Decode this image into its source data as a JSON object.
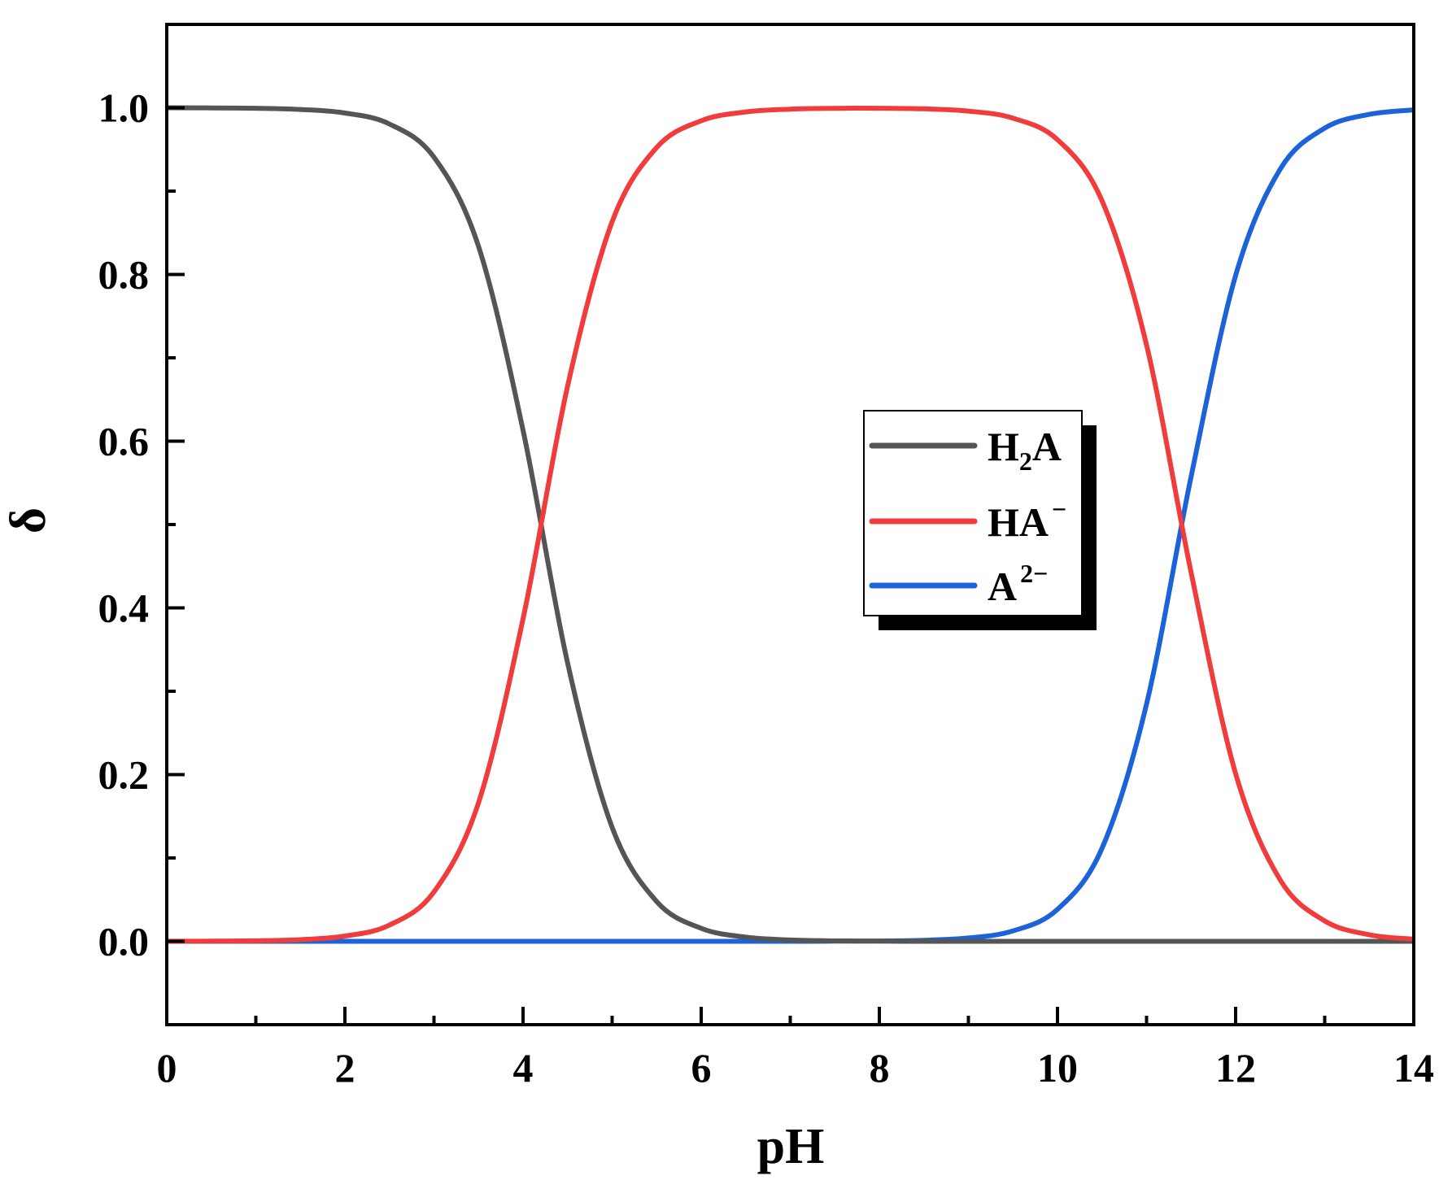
{
  "chart_data": {
    "type": "line",
    "title": "",
    "xlabel": "pH",
    "ylabel": "δ",
    "xlim": [
      0,
      14
    ],
    "ylim": [
      -0.1,
      1.1
    ],
    "x_ticks": [
      0,
      2,
      4,
      6,
      8,
      10,
      12,
      14
    ],
    "x_tick_labels": [
      "0",
      "2",
      "4",
      "6",
      "8",
      "10",
      "12",
      "14"
    ],
    "x_minor_ticks": [
      1,
      3,
      5,
      7,
      9,
      11,
      13
    ],
    "y_ticks": [
      0.0,
      0.2,
      0.4,
      0.6,
      0.8,
      1.0
    ],
    "y_tick_labels": [
      "0.0",
      "0.2",
      "0.4",
      "0.6",
      "0.8",
      "1.0"
    ],
    "y_minor_ticks": [
      0.1,
      0.3,
      0.5,
      0.7,
      0.9
    ],
    "grid": false,
    "legend_position": "center-right",
    "pKa1": 4.2,
    "pKa2": 11.6,
    "x": [
      0,
      0.5,
      1,
      1.5,
      2,
      2.5,
      3,
      3.5,
      4,
      4.5,
      5,
      5.5,
      6,
      6.5,
      7,
      7.5,
      8,
      8.5,
      9,
      9.5,
      10,
      10.5,
      11,
      11.5,
      12,
      12.5,
      13,
      13.5,
      14
    ],
    "series": [
      {
        "name": "H2A",
        "legend_main": "H",
        "legend_sub": "2",
        "legend_tail": "A",
        "color": "#555555",
        "values": [
          1.0,
          0.9998,
          0.9994,
          0.998,
          0.9937,
          0.9805,
          0.9407,
          0.8337,
          0.6131,
          0.3339,
          0.1368,
          0.0477,
          0.0156,
          0.005,
          0.0016,
          0.0005,
          0.0002,
          0.0,
          0.0,
          0.0,
          0.0,
          0.0,
          0.0,
          0.0,
          0.0,
          0.0,
          0.0,
          0.0,
          0.0
        ]
      },
      {
        "name": "HA⁻",
        "legend_main": "HA",
        "legend_sup": "−",
        "color": "#f03c3c",
        "values": [
          0.0001,
          0.0002,
          0.0006,
          0.002,
          0.0063,
          0.0195,
          0.0593,
          0.1663,
          0.3869,
          0.6661,
          0.8632,
          0.9523,
          0.9844,
          0.995,
          0.9983,
          0.9993,
          0.9994,
          0.9987,
          0.996,
          0.9875,
          0.9617,
          0.8883,
          0.7153,
          0.4424,
          0.2012,
          0.0737,
          0.0245,
          0.0079,
          0.0025
        ]
      },
      {
        "name": "A²⁻",
        "legend_main": "A",
        "legend_sup": "2−",
        "color": "#1c63d9",
        "values": [
          0.0,
          0.0,
          0.0,
          0.0,
          0.0,
          0.0,
          0.0,
          0.0,
          0.0,
          0.0,
          0.0,
          0.0,
          0.0,
          0.0,
          0.0,
          0.0002,
          0.0004,
          0.0013,
          0.004,
          0.0125,
          0.0383,
          0.1117,
          0.2847,
          0.5576,
          0.7988,
          0.9263,
          0.9755,
          0.9921,
          0.9975
        ]
      }
    ]
  }
}
